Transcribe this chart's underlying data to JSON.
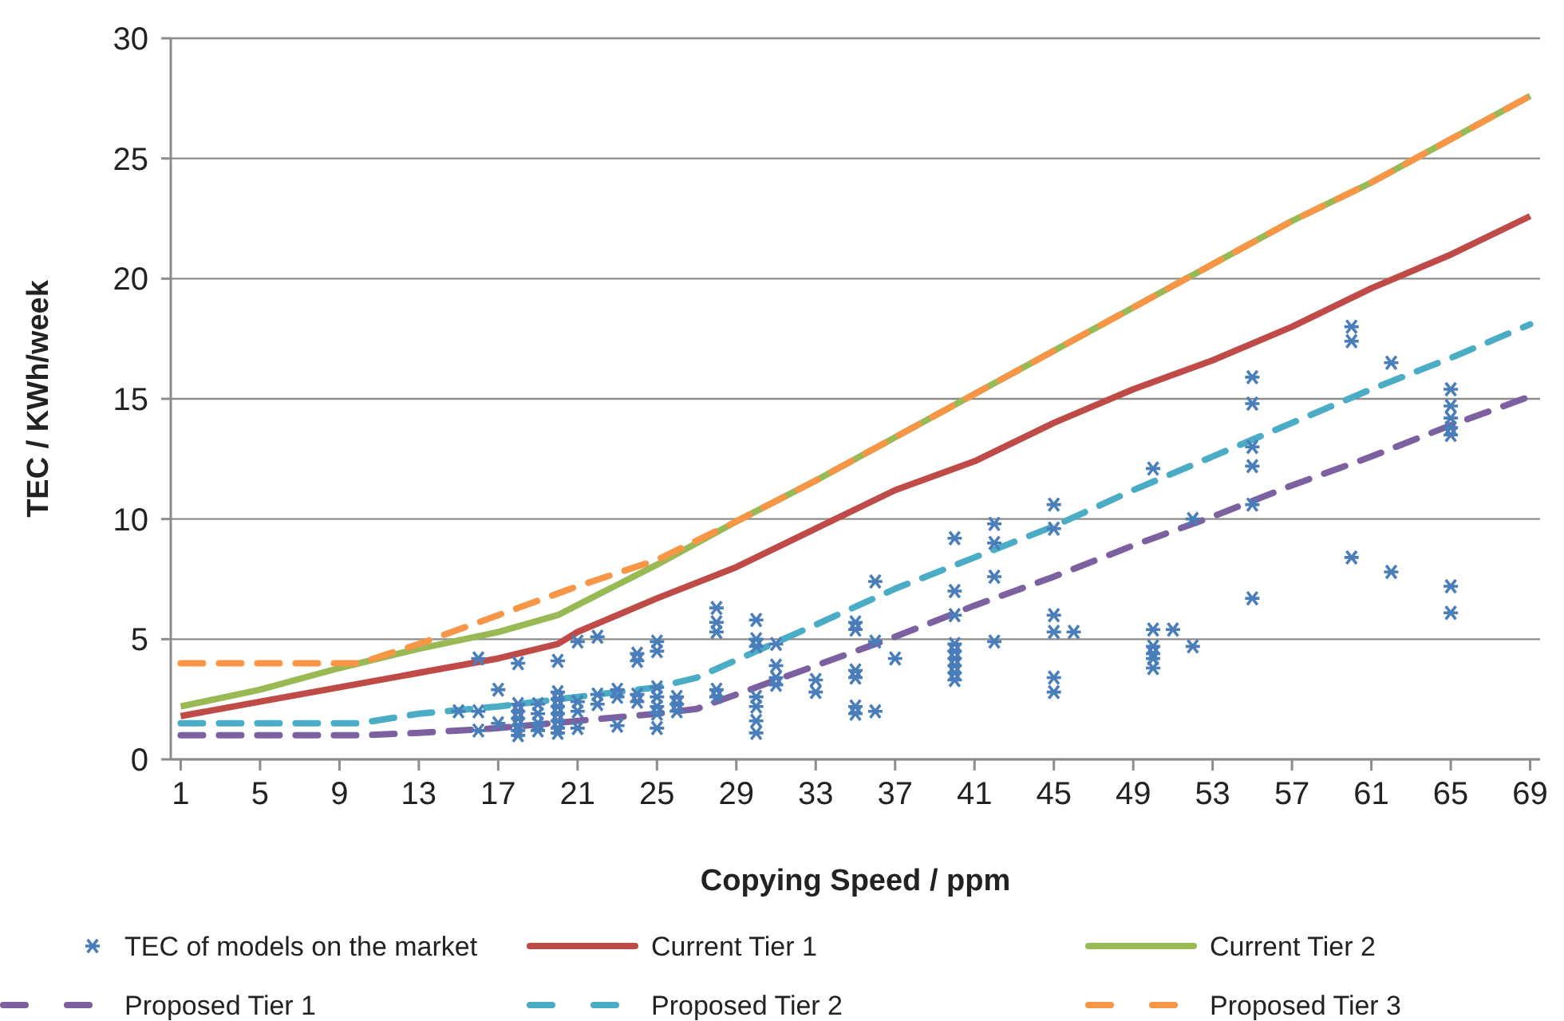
{
  "chart_data": {
    "type": "line",
    "xlabel": "Copying Speed / ppm",
    "ylabel": "TEC / KWh/week",
    "xlim": [
      0.5,
      69.5
    ],
    "xticks": [
      1,
      5,
      9,
      13,
      17,
      21,
      25,
      29,
      33,
      37,
      41,
      45,
      49,
      53,
      57,
      61,
      65,
      69
    ],
    "ylim": [
      0,
      30
    ],
    "yticks": [
      0,
      5,
      10,
      15,
      20,
      25,
      30
    ],
    "grid": "y",
    "legend": "bottom",
    "series": [
      {
        "name": "TEC of models on the market",
        "type": "scatter",
        "marker": "cross",
        "color": "#4a7ebb",
        "x": [
          15,
          16,
          16,
          16,
          17,
          17,
          18,
          18,
          18,
          18,
          18,
          18,
          18,
          19,
          19,
          19,
          19,
          20,
          20,
          20,
          20,
          20,
          20,
          20,
          20,
          21,
          21,
          21,
          21,
          22,
          22,
          22,
          23,
          23,
          23,
          24,
          24,
          24,
          24,
          25,
          25,
          25,
          25,
          25,
          25,
          25,
          26,
          26,
          26,
          28,
          28,
          28,
          28,
          28,
          30,
          30,
          30,
          30,
          30,
          30,
          30,
          31,
          31,
          31,
          31,
          33,
          33,
          35,
          35,
          35,
          35,
          35,
          35,
          36,
          36,
          36,
          37,
          40,
          40,
          40,
          40,
          40,
          40,
          40,
          40,
          40,
          42,
          42,
          42,
          42,
          45,
          45,
          45,
          45,
          45,
          45,
          46,
          50,
          50,
          50,
          50,
          50,
          50,
          51,
          52,
          52,
          55,
          55,
          55,
          55,
          55,
          55,
          60,
          60,
          60,
          62,
          62,
          65,
          65,
          65,
          65,
          65,
          65,
          65
        ],
        "values": [
          2.0,
          4.2,
          2.0,
          1.2,
          2.9,
          1.5,
          4.0,
          2.3,
          2.0,
          1.7,
          1.4,
          1.2,
          1.0,
          2.3,
          1.9,
          1.5,
          1.2,
          4.1,
          2.8,
          2.5,
          2.2,
          1.9,
          1.6,
          1.3,
          1.1,
          4.9,
          2.4,
          2.0,
          1.3,
          5.1,
          2.7,
          2.3,
          2.9,
          2.6,
          1.4,
          4.4,
          4.1,
          2.7,
          2.4,
          4.9,
          4.5,
          3.0,
          2.6,
          2.2,
          1.9,
          1.3,
          2.6,
          2.3,
          2.0,
          6.3,
          5.7,
          5.3,
          2.9,
          2.6,
          5.8,
          5.0,
          4.7,
          2.6,
          2.2,
          1.6,
          1.1,
          4.8,
          3.9,
          3.4,
          3.1,
          3.3,
          2.8,
          5.7,
          5.4,
          3.7,
          3.4,
          2.2,
          1.9,
          7.4,
          4.9,
          2.0,
          4.2,
          9.2,
          7.0,
          6.0,
          4.8,
          4.5,
          4.2,
          3.9,
          3.6,
          3.3,
          9.8,
          9.0,
          7.6,
          4.9,
          10.6,
          9.6,
          6.0,
          5.3,
          3.4,
          2.8,
          5.3,
          12.1,
          5.4,
          4.7,
          4.4,
          4.2,
          3.8,
          5.4,
          10.0,
          4.7,
          15.9,
          14.8,
          13.0,
          12.2,
          10.6,
          6.7,
          18.0,
          17.4,
          8.4,
          16.5,
          7.8,
          15.4,
          14.7,
          14.2,
          13.8,
          13.5,
          7.2,
          6.1
        ]
      },
      {
        "name": "Current Tier 1",
        "line_style": "solid",
        "color": "#be4b48",
        "x": [
          1,
          5,
          9,
          13,
          17,
          20,
          21,
          25,
          29,
          33,
          37,
          41,
          45,
          49,
          53,
          57,
          61,
          65,
          69
        ],
        "values": [
          1.8,
          2.4,
          3.0,
          3.6,
          4.2,
          4.8,
          5.3,
          6.7,
          8.0,
          9.6,
          11.2,
          12.4,
          14.0,
          15.4,
          16.6,
          18.0,
          19.6,
          21.0,
          22.6
        ]
      },
      {
        "name": "Current Tier 2",
        "line_style": "solid",
        "color": "#98b954",
        "x": [
          1,
          5,
          9,
          13,
          17,
          20,
          25,
          29,
          33,
          37,
          41,
          45,
          49,
          53,
          57,
          61,
          65,
          69
        ],
        "values": [
          2.2,
          2.9,
          3.8,
          4.6,
          5.3,
          6.0,
          8.1,
          9.9,
          11.6,
          13.4,
          15.2,
          17.0,
          18.8,
          20.6,
          22.4,
          24.0,
          25.8,
          27.6
        ]
      },
      {
        "name": "Proposed Tier 1",
        "line_style": "dashed",
        "color": "#7d60a0",
        "x": [
          1,
          10,
          13,
          17,
          21,
          25,
          27,
          33,
          37,
          41,
          45,
          49,
          53,
          57,
          61,
          65,
          69
        ],
        "values": [
          1.0,
          1.0,
          1.1,
          1.3,
          1.6,
          1.9,
          2.1,
          3.9,
          5.1,
          6.4,
          7.6,
          8.9,
          10.1,
          11.4,
          12.6,
          13.9,
          15.1
        ]
      },
      {
        "name": "Proposed Tier 2",
        "line_style": "dashed",
        "color": "#4bacc6",
        "x": [
          1,
          10,
          13,
          17,
          21,
          25,
          27,
          33,
          37,
          41,
          45,
          49,
          53,
          57,
          61,
          65,
          69
        ],
        "values": [
          1.5,
          1.5,
          1.9,
          2.2,
          2.6,
          3.0,
          3.4,
          5.6,
          7.1,
          8.4,
          9.7,
          11.2,
          12.6,
          14.0,
          15.4,
          16.7,
          18.1
        ]
      },
      {
        "name": "Proposed Tier 3",
        "line_style": "dashed",
        "color": "#f79646",
        "x": [
          1,
          10,
          13,
          17,
          21,
          25,
          29,
          33,
          37,
          41,
          45,
          49,
          53,
          57,
          61,
          65,
          69
        ],
        "values": [
          4.0,
          4.0,
          4.8,
          6.0,
          7.2,
          8.3,
          9.9,
          11.6,
          13.4,
          15.2,
          17.0,
          18.8,
          20.6,
          22.4,
          24.0,
          25.8,
          27.6
        ]
      }
    ]
  }
}
